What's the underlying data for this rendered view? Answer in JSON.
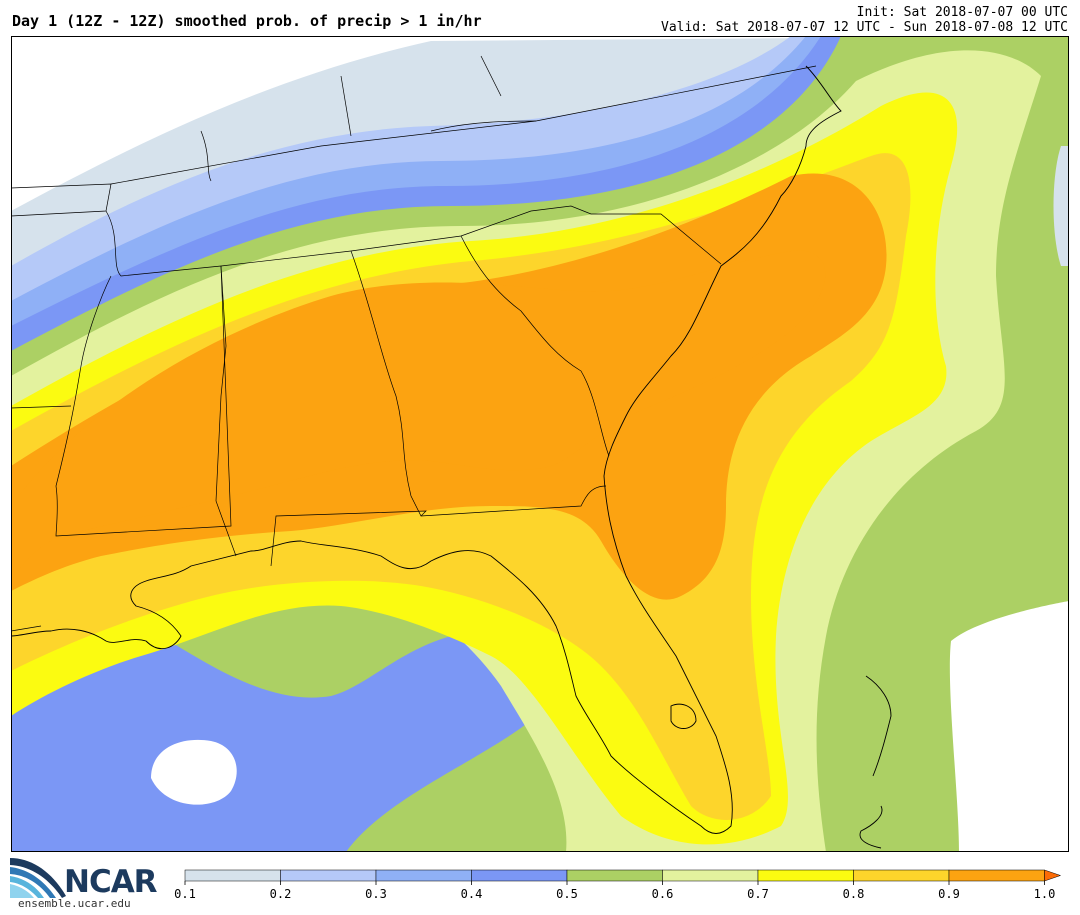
{
  "header": {
    "title": "Day 1 (12Z - 12Z) smoothed prob. of precip > 1 in/hr",
    "init": "Init: Sat 2018-07-07 00 UTC",
    "valid": "Valid: Sat 2018-07-07 12 UTC - Sun 2018-07-08 12 UTC"
  },
  "logo": {
    "name": "NCAR",
    "url": "ensemble.ucar.edu"
  },
  "colorbar": {
    "ticks": [
      "0.1",
      "0.2",
      "0.3",
      "0.4",
      "0.5",
      "0.6",
      "0.7",
      "0.8",
      "0.9",
      "1.0"
    ],
    "colors": [
      "#d6e2ec",
      "#b5c9f8",
      "#8fb0f6",
      "#7b97f5",
      "#acd064",
      "#e3f29e",
      "#fbfb11",
      "#fdd52b",
      "#fca311",
      "#fb6b06"
    ]
  },
  "map": {
    "fill_colors": {
      "0.1": "#d6e2ec",
      "0.2": "#b5c9f8",
      "0.3": "#8fb0f6",
      "0.4": "#7b97f5",
      "0.5": "#acd064",
      "0.6": "#e3f29e",
      "0.7": "#fbfb11",
      "0.8": "#fdd52b",
      "0.9": "#fca311"
    }
  }
}
